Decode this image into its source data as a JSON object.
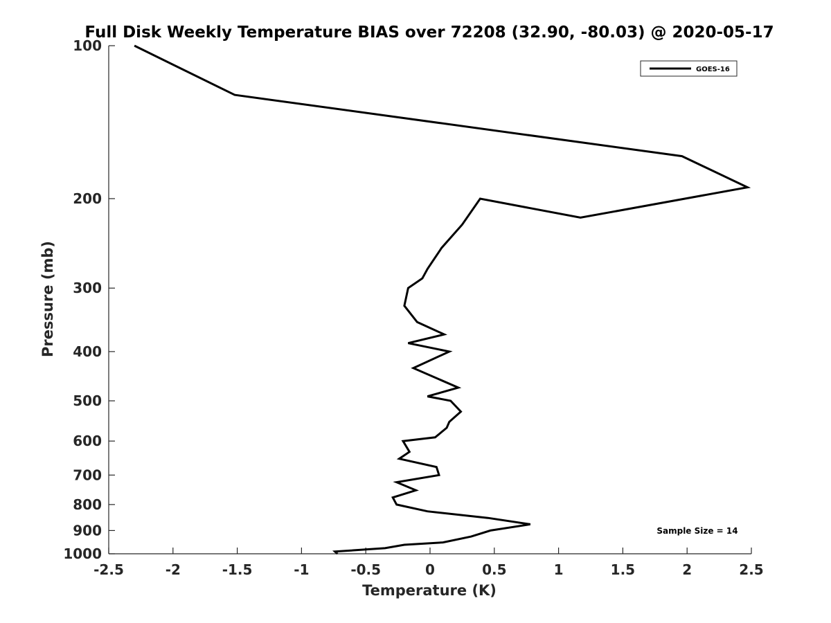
{
  "chart_data": {
    "type": "line",
    "title": "Full Disk Weekly Temperature BIAS over 72208 (32.90, -80.03) @ 2020-05-17",
    "xlabel": "Temperature (K)",
    "ylabel": "Pressure (mb)",
    "xlim": [
      -2.5,
      2.5
    ],
    "ylim": [
      1000,
      100
    ],
    "yscale": "log",
    "y_reversed": true,
    "grid": false,
    "legend_position": "top-right",
    "x_ticks": [
      "-2.5",
      "-2",
      "-1.5",
      "-1",
      "-0.5",
      "0",
      "0.5",
      "1",
      "1.5",
      "2",
      "2.5"
    ],
    "y_ticks": [
      "100",
      "200",
      "300",
      "400",
      "500",
      "600",
      "700",
      "800",
      "900",
      "1000"
    ],
    "annotation": "Sample Size = 14",
    "series": [
      {
        "name": "GOES-16",
        "color": "#000000",
        "points": [
          [
            -2.3,
            100
          ],
          [
            -1.52,
            125
          ],
          [
            1.96,
            165
          ],
          [
            2.47,
            190
          ],
          [
            1.17,
            218
          ],
          [
            0.39,
            200
          ],
          [
            0.25,
            225
          ],
          [
            0.09,
            250
          ],
          [
            -0.02,
            275
          ],
          [
            -0.06,
            287
          ],
          [
            -0.17,
            300
          ],
          [
            -0.2,
            325
          ],
          [
            -0.1,
            350
          ],
          [
            0.11,
            370
          ],
          [
            -0.17,
            385
          ],
          [
            0.15,
            400
          ],
          [
            -0.13,
            431
          ],
          [
            0.22,
            471
          ],
          [
            -0.02,
            490
          ],
          [
            0.16,
            500
          ],
          [
            0.24,
            525
          ],
          [
            0.15,
            550
          ],
          [
            0.13,
            565
          ],
          [
            0.04,
            590
          ],
          [
            -0.21,
            600
          ],
          [
            -0.16,
            630
          ],
          [
            -0.24,
            650
          ],
          [
            0.05,
            675
          ],
          [
            0.07,
            700
          ],
          [
            -0.26,
            723
          ],
          [
            -0.11,
            750
          ],
          [
            -0.29,
            775
          ],
          [
            -0.26,
            800
          ],
          [
            -0.02,
            825
          ],
          [
            0.45,
            850
          ],
          [
            0.78,
            875
          ],
          [
            0.47,
            900
          ],
          [
            0.32,
            925
          ],
          [
            0.1,
            950
          ],
          [
            -0.2,
            960
          ],
          [
            -0.35,
            975
          ],
          [
            -0.74,
            990
          ],
          [
            -0.72,
            1000
          ]
        ]
      }
    ]
  }
}
